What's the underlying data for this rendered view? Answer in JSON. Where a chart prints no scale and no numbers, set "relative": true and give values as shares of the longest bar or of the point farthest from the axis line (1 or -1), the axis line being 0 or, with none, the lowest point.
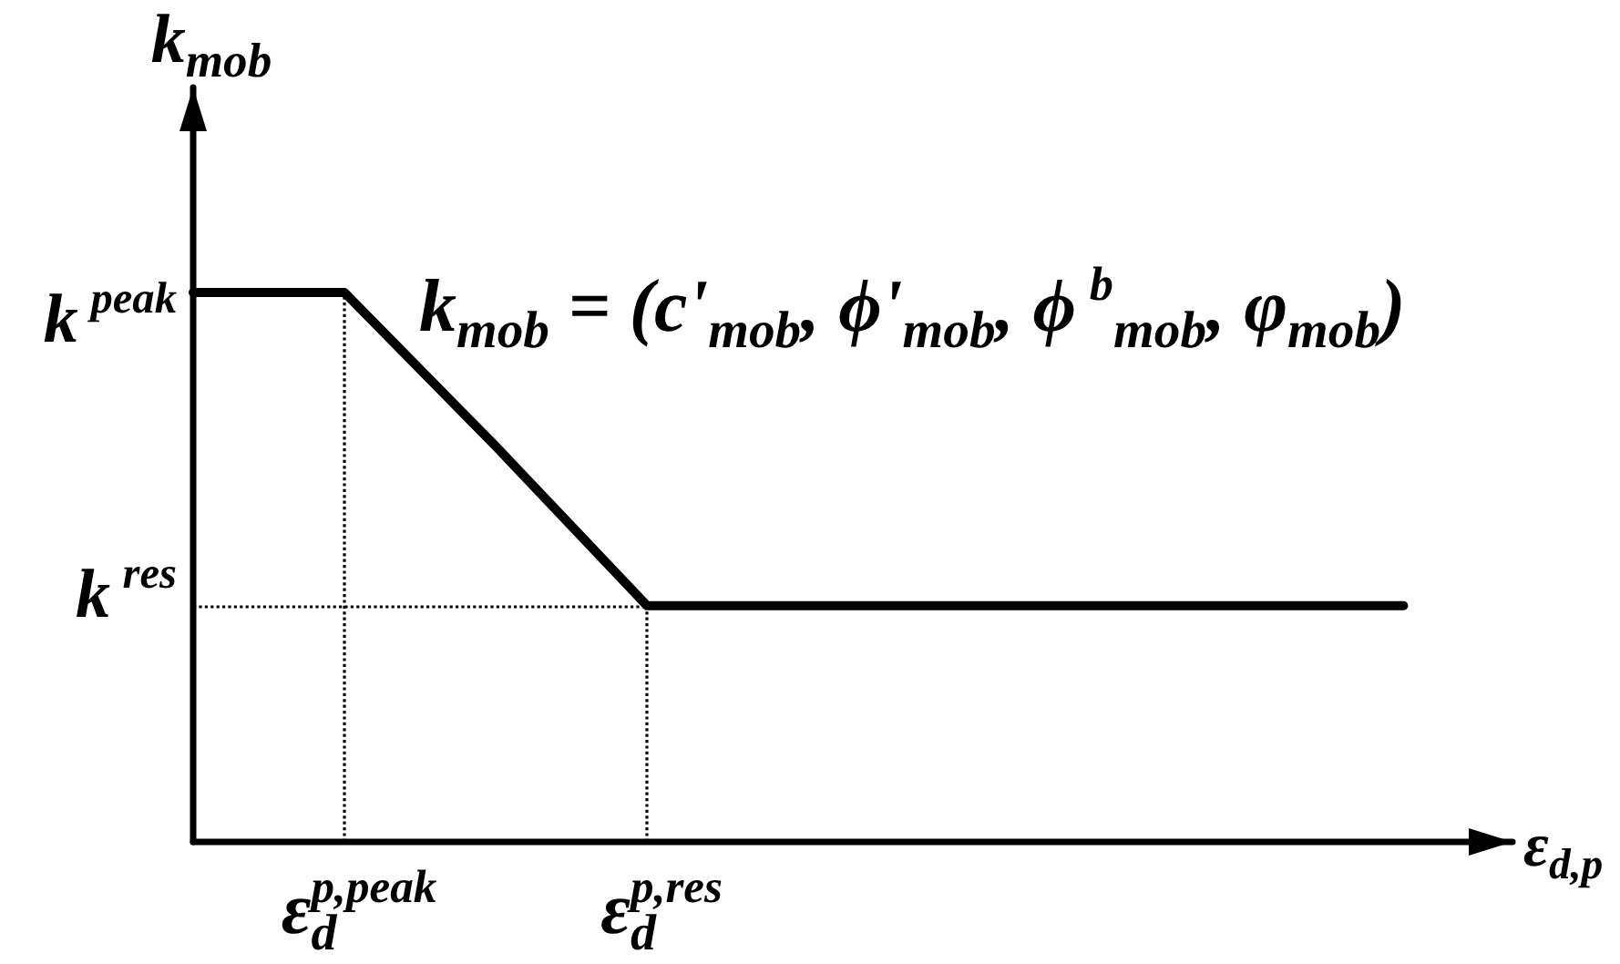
{
  "chart_data": {
    "type": "line",
    "relative": true,
    "xlabel": "ε$_{d,p}$",
    "ylabel": "k$_{mob}$",
    "categories": [
      null,
      "ε$_{d}$$^{p,peak}$",
      null,
      "ε$_{d}$$^{p,res}$",
      null,
      null,
      null,
      null,
      null
    ],
    "series": [
      {
        "name": "k$_{mob}$ = (c'$_{mob}$, ϕ'$_{mob}$, ϕ$^{b}$$_{mob}$, φ$_{mob}$)",
        "color": "#000000",
        "values": [
          1,
          1,
          0.72,
          0.43,
          0.43,
          0.43,
          0.43,
          0.43,
          0.43
        ]
      }
    ],
    "ref_lines": [
      {
        "axis": "x",
        "value": "ε$_{d}$$^{p,peak}$",
        "line_style": "dotted",
        "color": "#000000"
      },
      {
        "axis": "x",
        "value": "ε$_{d}$$^{p,res}$",
        "line_style": "dotted",
        "color": "#000000"
      },
      {
        "axis": "y",
        "value": 0.43,
        "label": "k$^{res}$",
        "line_style": "dotted",
        "color": "#000000"
      }
    ],
    "annotations": [
      "k$^{peak}$"
    ]
  }
}
